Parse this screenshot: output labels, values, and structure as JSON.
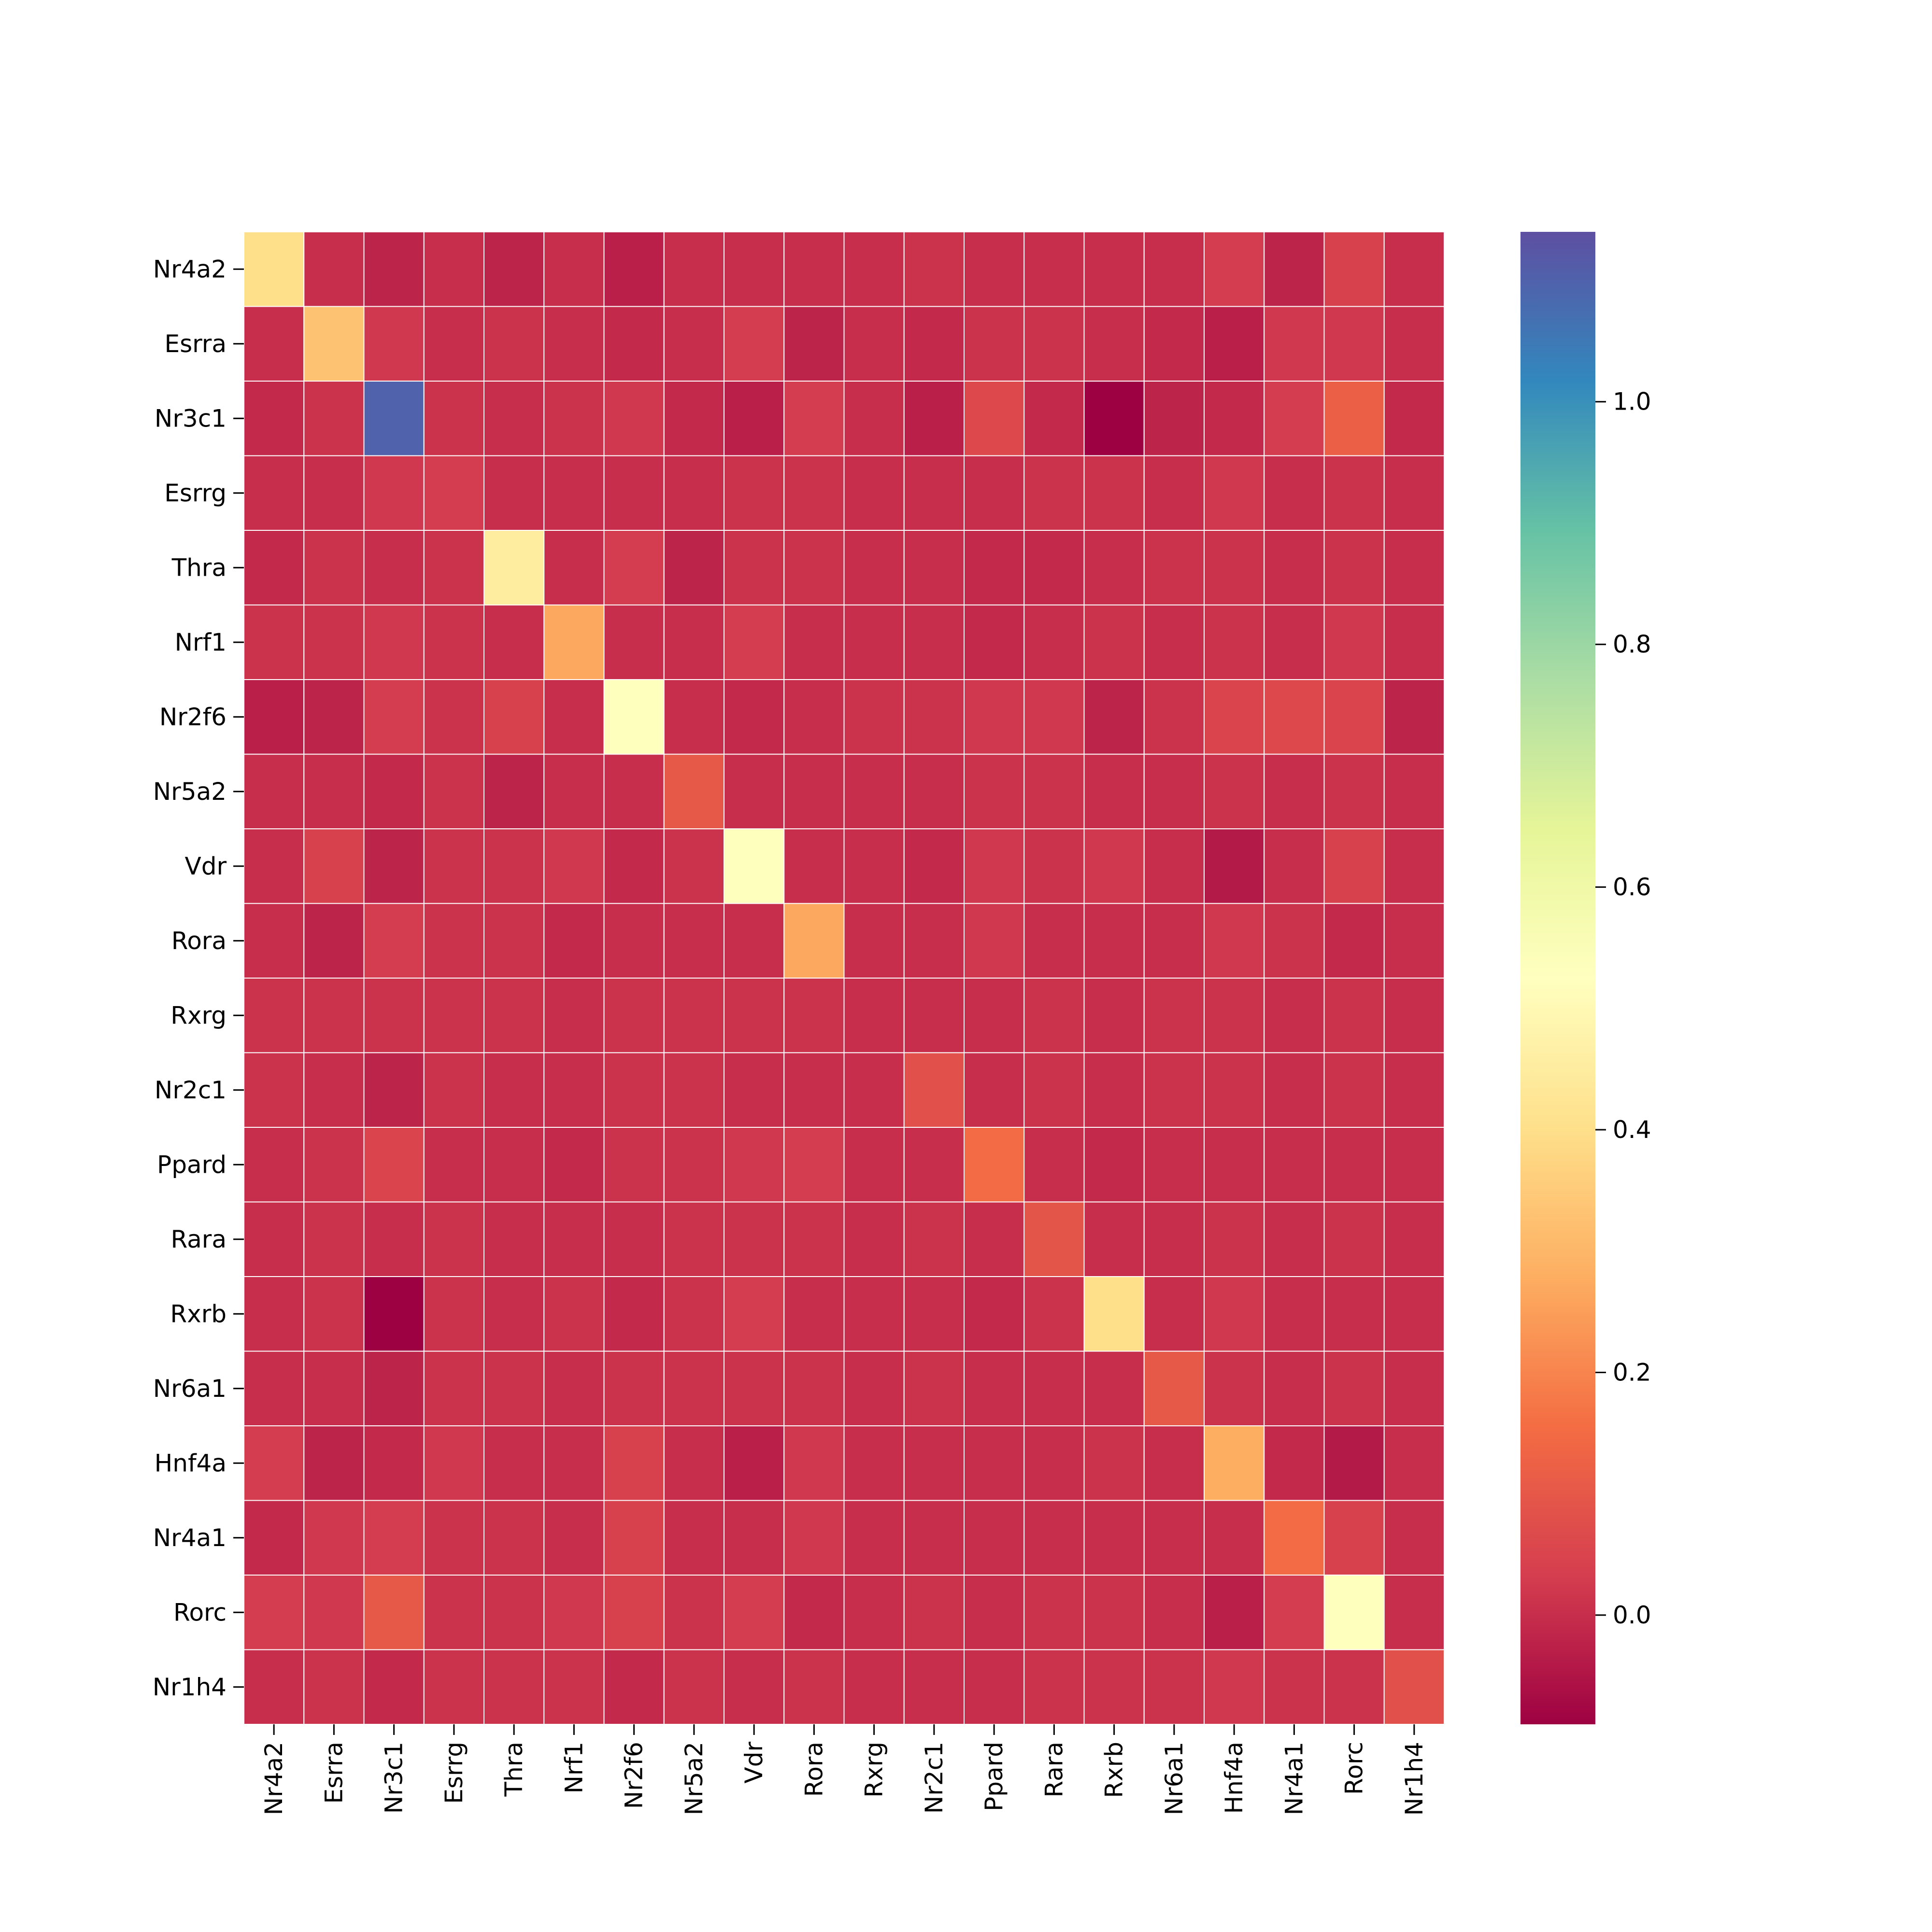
{
  "chart_data": {
    "type": "heatmap",
    "title": "",
    "xlabel": "",
    "ylabel": "",
    "x_labels": [
      "Nr4a2",
      "Esrra",
      "Nr3c1",
      "Esrrg",
      "Thra",
      "Nrf1",
      "Nr2f6",
      "Nr5a2",
      "Vdr",
      "Rora",
      "Rxrg",
      "Nr2c1",
      "Ppard",
      "Rara",
      "Rxrb",
      "Nr6a1",
      "Hnf4a",
      "Nr4a1",
      "Rorc",
      "Nr1h4"
    ],
    "y_labels": [
      "Nr4a2",
      "Esrra",
      "Nr3c1",
      "Esrrg",
      "Thra",
      "Nrf1",
      "Nr2f6",
      "Nr5a2",
      "Vdr",
      "Rora",
      "Rxrg",
      "Nr2c1",
      "Ppard",
      "Rara",
      "Rxrb",
      "Nr6a1",
      "Hnf4a",
      "Nr4a1",
      "Rorc",
      "Nr1h4"
    ],
    "values": [
      [
        0.4,
        0.0,
        -0.02,
        0.0,
        -0.02,
        0.0,
        -0.03,
        0.0,
        0.0,
        0.0,
        0.0,
        0.01,
        0.0,
        0.0,
        0.0,
        0.0,
        0.03,
        -0.02,
        0.04,
        0.0
      ],
      [
        0.0,
        0.33,
        0.02,
        0.0,
        0.01,
        0.0,
        -0.01,
        0.0,
        0.03,
        -0.02,
        0.0,
        -0.01,
        0.01,
        0.01,
        0.0,
        -0.01,
        -0.03,
        0.02,
        0.02,
        0.0
      ],
      [
        -0.01,
        0.01,
        1.1,
        0.01,
        0.0,
        0.01,
        0.02,
        -0.01,
        -0.03,
        0.03,
        0.0,
        -0.03,
        0.06,
        -0.01,
        -0.09,
        -0.02,
        -0.01,
        0.03,
        0.12,
        -0.01
      ],
      [
        0.0,
        0.0,
        0.02,
        0.03,
        0.0,
        0.0,
        0.0,
        0.0,
        0.01,
        0.01,
        0.0,
        0.0,
        0.0,
        0.01,
        0.01,
        0.0,
        0.02,
        0.0,
        0.01,
        0.0
      ],
      [
        -0.01,
        0.01,
        0.0,
        0.01,
        0.45,
        0.0,
        0.03,
        -0.02,
        0.01,
        0.01,
        0.0,
        0.0,
        -0.01,
        -0.01,
        0.0,
        0.01,
        0.01,
        0.0,
        0.01,
        0.0
      ],
      [
        0.01,
        0.01,
        0.02,
        0.01,
        0.0,
        0.27,
        0.0,
        0.0,
        0.03,
        0.0,
        0.0,
        0.0,
        -0.01,
        0.0,
        0.01,
        0.0,
        0.01,
        0.0,
        0.02,
        0.0
      ],
      [
        -0.03,
        -0.02,
        0.03,
        0.01,
        0.04,
        0.0,
        0.53,
        0.0,
        -0.01,
        0.0,
        0.01,
        0.01,
        0.02,
        0.02,
        -0.02,
        0.01,
        0.05,
        0.06,
        0.05,
        -0.02
      ],
      [
        0.0,
        0.0,
        -0.01,
        0.01,
        -0.02,
        0.0,
        0.0,
        0.1,
        0.0,
        0.0,
        0.0,
        0.0,
        0.01,
        0.01,
        0.0,
        0.0,
        0.01,
        0.0,
        0.01,
        0.0
      ],
      [
        0.0,
        0.04,
        -0.02,
        0.01,
        0.01,
        0.02,
        -0.01,
        0.01,
        0.53,
        0.0,
        0.0,
        -0.01,
        0.02,
        0.01,
        0.02,
        0.0,
        -0.04,
        0.0,
        0.04,
        0.0
      ],
      [
        0.0,
        -0.02,
        0.03,
        0.01,
        0.01,
        -0.01,
        0.0,
        0.0,
        0.0,
        0.27,
        0.0,
        0.0,
        0.02,
        0.0,
        0.0,
        0.0,
        0.02,
        0.01,
        -0.01,
        0.0
      ],
      [
        0.01,
        0.01,
        0.01,
        0.01,
        0.01,
        0.0,
        0.01,
        0.01,
        0.01,
        0.01,
        0.0,
        0.0,
        0.0,
        0.01,
        0.0,
        0.01,
        0.01,
        0.0,
        0.01,
        0.0
      ],
      [
        0.01,
        0.0,
        -0.02,
        0.01,
        0.0,
        0.0,
        0.01,
        0.01,
        0.0,
        0.0,
        0.0,
        0.08,
        0.0,
        0.01,
        0.0,
        0.01,
        0.01,
        0.0,
        0.01,
        0.0
      ],
      [
        0.0,
        0.01,
        0.05,
        0.0,
        0.0,
        -0.01,
        0.01,
        0.01,
        0.02,
        0.03,
        0.0,
        0.0,
        0.15,
        0.0,
        -0.01,
        0.0,
        0.0,
        0.0,
        0.0,
        0.0
      ],
      [
        0.0,
        0.01,
        0.0,
        0.01,
        0.0,
        0.0,
        0.0,
        0.01,
        0.01,
        0.01,
        0.0,
        0.01,
        0.0,
        0.09,
        0.0,
        0.0,
        0.01,
        0.0,
        0.01,
        0.0
      ],
      [
        0.0,
        0.01,
        -0.09,
        0.01,
        0.0,
        0.01,
        -0.01,
        0.01,
        0.03,
        0.0,
        0.0,
        0.0,
        -0.01,
        0.01,
        0.4,
        0.0,
        0.02,
        0.0,
        0.0,
        0.0
      ],
      [
        0.0,
        0.0,
        -0.02,
        0.01,
        0.01,
        0.0,
        0.01,
        0.01,
        0.01,
        0.01,
        0.0,
        0.01,
        0.0,
        0.0,
        0.0,
        0.1,
        0.01,
        0.0,
        0.01,
        0.0
      ],
      [
        0.03,
        -0.02,
        -0.01,
        0.02,
        0.0,
        0.0,
        0.04,
        0.0,
        -0.03,
        0.02,
        0.0,
        0.0,
        0.0,
        0.0,
        0.01,
        0.0,
        0.28,
        -0.01,
        -0.04,
        0.0
      ],
      [
        -0.01,
        0.02,
        0.03,
        0.01,
        0.01,
        0.0,
        0.04,
        0.0,
        0.0,
        0.02,
        0.0,
        0.0,
        0.0,
        0.0,
        0.0,
        0.0,
        0.0,
        0.15,
        0.04,
        0.0
      ],
      [
        0.03,
        0.02,
        0.1,
        0.01,
        0.01,
        0.02,
        0.04,
        0.01,
        0.03,
        -0.01,
        0.0,
        0.01,
        0.0,
        0.01,
        0.01,
        0.0,
        -0.03,
        0.03,
        0.53,
        0.0
      ],
      [
        0.0,
        0.01,
        -0.01,
        0.01,
        0.01,
        0.01,
        -0.01,
        0.01,
        0.0,
        0.01,
        0.0,
        0.0,
        0.0,
        0.01,
        0.01,
        0.01,
        0.02,
        0.01,
        0.01,
        0.08
      ]
    ],
    "colormap": "Spectral",
    "colorbar": {
      "vmin": -0.09,
      "vmax": 1.14,
      "ticks": [
        0.0,
        0.2,
        0.4,
        0.6,
        0.8,
        1.0
      ],
      "tick_labels": [
        "0.0",
        "0.2",
        "0.4",
        "0.6",
        "0.8",
        "1.0"
      ]
    },
    "grid": true,
    "grid_color": "#ffffff"
  }
}
